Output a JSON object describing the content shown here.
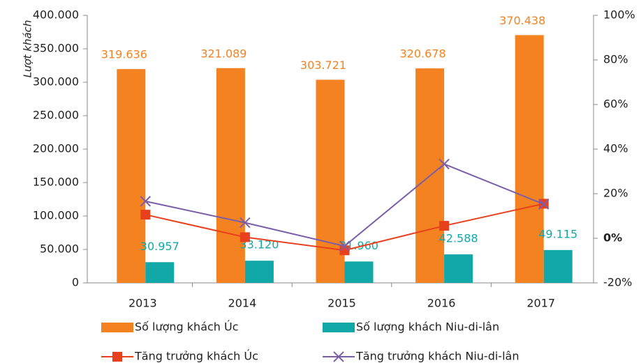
{
  "chart_data": {
    "type": "bar-line",
    "y_label": "Lượt khách",
    "categories": [
      "2013",
      "2014",
      "2015",
      "2016",
      "2017"
    ],
    "series": [
      {
        "name": "Số lượng khách Úc",
        "type": "bar",
        "color": "#f58220",
        "values": [
          319636,
          321089,
          303721,
          320678,
          370438
        ],
        "value_labels": [
          "319.636",
          "321.089",
          "303.721",
          "320.678",
          "370.438"
        ]
      },
      {
        "name": "Số lượng khách Niu-di-lân",
        "type": "bar",
        "color": "#12a8a8",
        "values": [
          30957,
          33120,
          31960,
          42588,
          49115
        ],
        "value_labels": [
          "30.957",
          "33.120",
          "31.960",
          "42.588",
          "49.115"
        ]
      },
      {
        "name": "Tăng trưởng khách Úc",
        "type": "line",
        "axis": "y2",
        "marker": "square",
        "color": "#e8401c",
        "values": [
          10.6,
          0.5,
          -5.4,
          5.6,
          15.5
        ]
      },
      {
        "name": "Tăng trưởng khách Niu-di-lân",
        "type": "line",
        "axis": "y2",
        "marker": "x",
        "color": "#7b5ea7",
        "values": [
          16.6,
          7.0,
          -3.5,
          33.3,
          15.3
        ]
      }
    ],
    "ylim": [
      0,
      400000
    ],
    "yticks": [
      {
        "value": 0,
        "label": "0"
      },
      {
        "value": 50000,
        "label": "50.000"
      },
      {
        "value": 100000,
        "label": "100.000"
      },
      {
        "value": 150000,
        "label": "150.000"
      },
      {
        "value": 200000,
        "label": "200.000"
      },
      {
        "value": 250000,
        "label": "250.000"
      },
      {
        "value": 300000,
        "label": "300.000"
      },
      {
        "value": 350000,
        "label": "350.000"
      },
      {
        "value": 400000,
        "label": "400.000"
      }
    ],
    "y2lim": [
      -20,
      100
    ],
    "y2ticks": [
      {
        "value": -20,
        "label": "-20%"
      },
      {
        "value": 0,
        "label": "0%"
      },
      {
        "value": 20,
        "label": "20%"
      },
      {
        "value": 40,
        "label": "40%"
      },
      {
        "value": 60,
        "label": "60%"
      },
      {
        "value": 80,
        "label": "80%"
      },
      {
        "value": 100,
        "label": "100%"
      }
    ],
    "legend": "bottom"
  }
}
